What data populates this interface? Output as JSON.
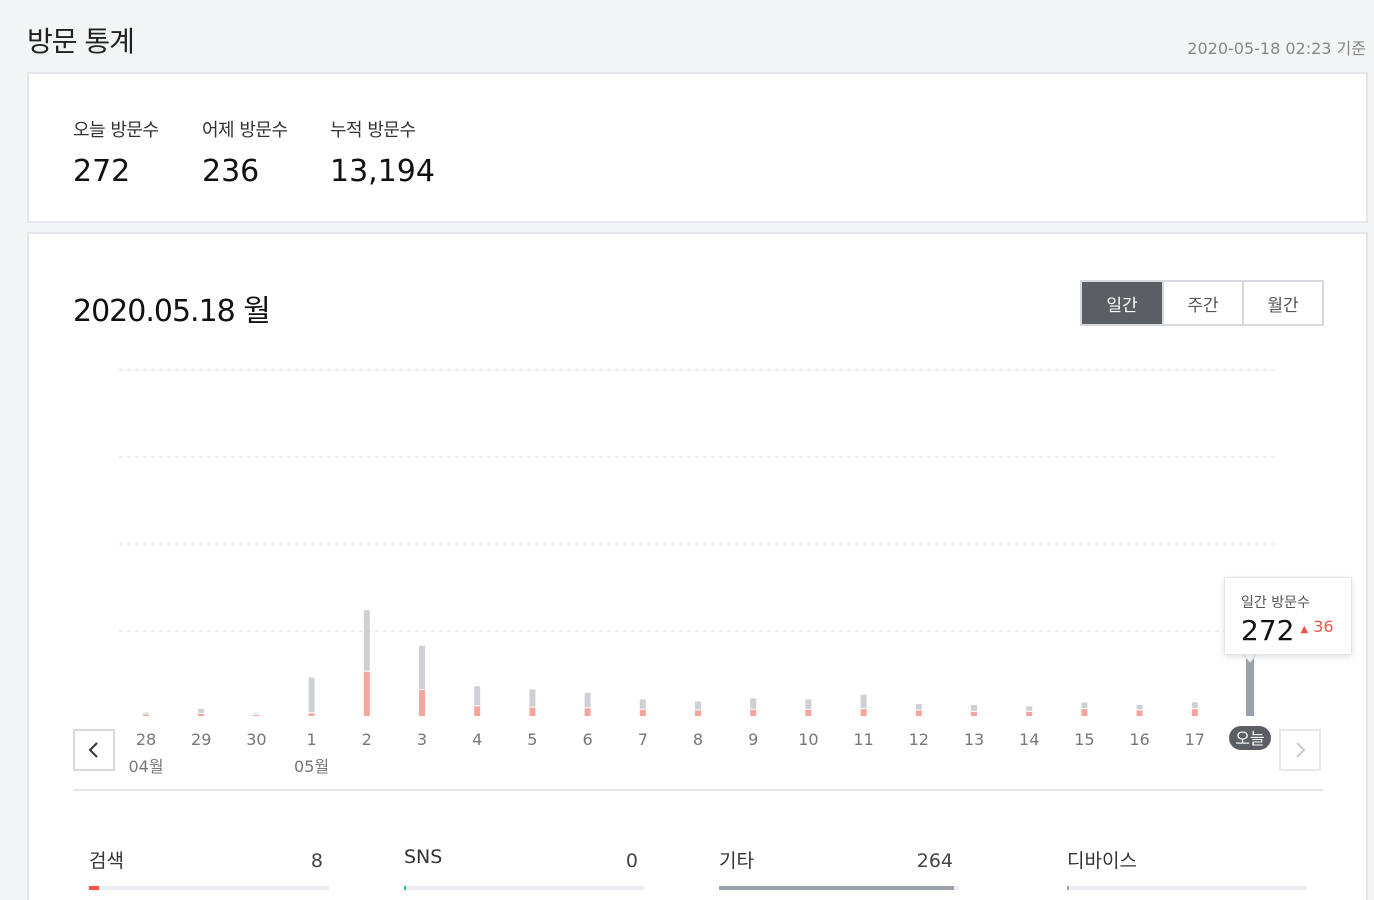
{
  "header": {
    "title": "방문 통계",
    "timestamp": "2020-05-18 02:23 기준"
  },
  "summary": {
    "today_label": "오늘 방문수",
    "today_value": "272",
    "yesterday_label": "어제 방문수",
    "yesterday_value": "236",
    "total_label": "누적 방문수",
    "total_value": "13,194"
  },
  "chart_header": {
    "date": "2020.05.18 월",
    "periods": [
      "일간",
      "주간",
      "월간"
    ],
    "active_period": "일간"
  },
  "tooltip": {
    "label": "일간 방문수",
    "value": "272",
    "diff": "36"
  },
  "colors": {
    "gray_bar": "#cdd1d5",
    "red_bar": "#f7a49c",
    "today_bar": "#9aa3ab",
    "accent_red": "#f0554b",
    "active_btn": "#5b5e63"
  },
  "chart_data": {
    "type": "bar",
    "stacked": true,
    "categories": [
      "28",
      "29",
      "30",
      "1",
      "2",
      "3",
      "4",
      "5",
      "6",
      "7",
      "8",
      "9",
      "10",
      "11",
      "12",
      "13",
      "14",
      "15",
      "16",
      "17",
      "오늘"
    ],
    "month_labels": [
      {
        "category_index": 0,
        "label": "04월"
      },
      {
        "category_index": 3,
        "label": "05월"
      }
    ],
    "today_index": 20,
    "series": [
      {
        "values": [
          4,
          6,
          3,
          8,
          128,
          75,
          28,
          24,
          22,
          18,
          16,
          18,
          18,
          20,
          16,
          12,
          12,
          20,
          16,
          20,
          0
        ]
      },
      {
        "values": [
          3,
          12,
          2,
          100,
          175,
          125,
          55,
          50,
          42,
          27,
          23,
          30,
          27,
          39,
          16,
          17,
          13,
          16,
          13,
          17,
          272
        ]
      }
    ],
    "ylim": [
      0,
      1000
    ],
    "grid": true
  },
  "sources": [
    {
      "label": "검색",
      "value": "8",
      "fill_fraction": 0.04,
      "color": "#f0554b"
    },
    {
      "label": "SNS",
      "value": "0",
      "fill_fraction": 0.0,
      "color": "#2dbf9f"
    },
    {
      "label": "기타",
      "value": "264",
      "fill_fraction": 0.98,
      "color": "#9aa3ab"
    },
    {
      "label": "디바이스",
      "value": "",
      "fill_fraction": 0.0,
      "color": "#9aa3ab"
    }
  ]
}
